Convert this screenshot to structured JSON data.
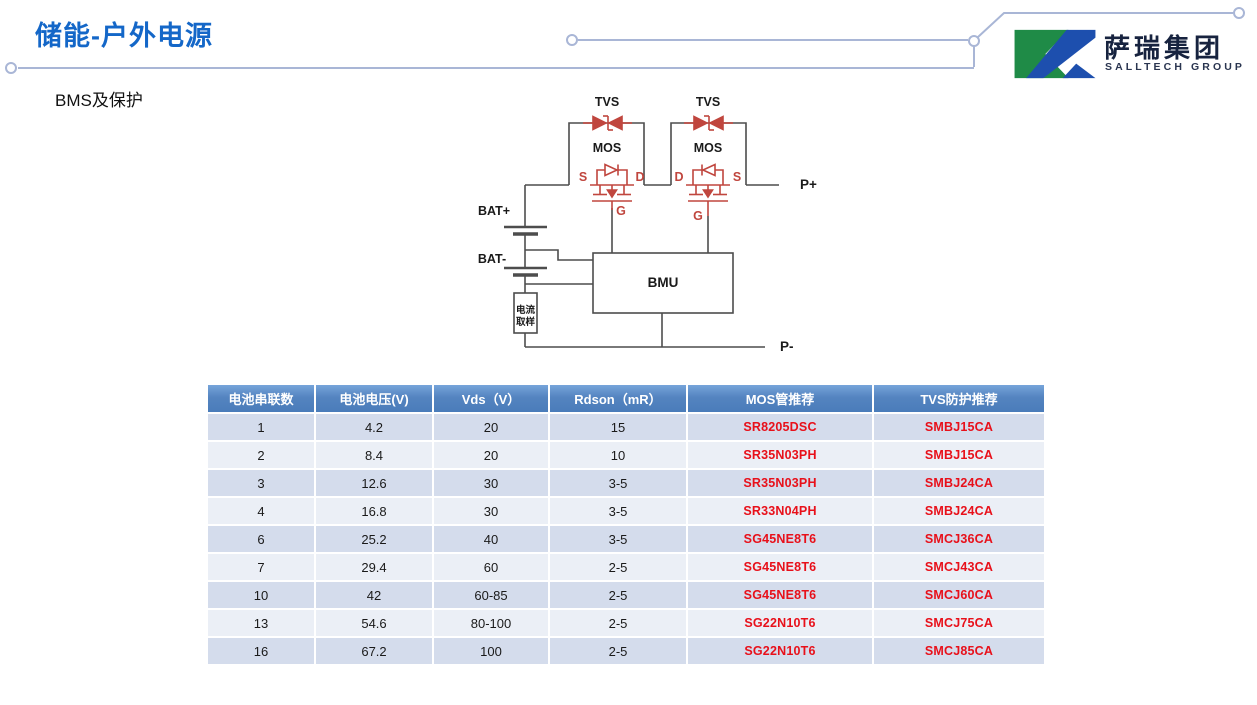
{
  "page": {
    "title": "储能-户外电源",
    "subtitle": "BMS及保护"
  },
  "logo": {
    "name_cn": "萨瑞集团",
    "name_en": "SALLTECH GROUP",
    "green": "#1f8b47",
    "blue": "#1d4fae"
  },
  "diagram": {
    "labels": {
      "tvs": "TVS",
      "mos": "MOS",
      "s": "S",
      "d": "D",
      "g": "G",
      "bat_plus": "BAT+",
      "bat_minus": "BAT-",
      "bmu": "BMU",
      "current_sampling_line1": "电流",
      "current_sampling_line2": "取样",
      "p_plus": "P+",
      "p_minus": "P-"
    },
    "colors": {
      "wire": "#4d4d4d",
      "component_red": "#c0463e"
    }
  },
  "table": {
    "headers": [
      "电池串联数",
      "电池电压(V)",
      "Vds（V）",
      "Rdson（mR）",
      "MOS管推荐",
      "TVS防护推荐"
    ],
    "col_keys": [
      "battery-series",
      "battery-voltage",
      "vds",
      "rdson",
      "mos-recommendation",
      "tvs-recommendation"
    ],
    "rows": [
      [
        "1",
        "4.2",
        "20",
        "15",
        "SR8205DSC",
        "SMBJ15CA"
      ],
      [
        "2",
        "8.4",
        "20",
        "10",
        "SR35N03PH",
        "SMBJ15CA"
      ],
      [
        "3",
        "12.6",
        "30",
        "3-5",
        "SR35N03PH",
        "SMBJ24CA"
      ],
      [
        "4",
        "16.8",
        "30",
        "3-5",
        "SR33N04PH",
        "SMBJ24CA"
      ],
      [
        "6",
        "25.2",
        "40",
        "3-5",
        "SG45NE8T6",
        "SMCJ36CA"
      ],
      [
        "7",
        "29.4",
        "60",
        "2-5",
        "SG45NE8T6",
        "SMCJ43CA"
      ],
      [
        "10",
        "42",
        "60-85",
        "2-5",
        "SG45NE8T6",
        "SMCJ60CA"
      ],
      [
        "13",
        "54.6",
        "80-100",
        "2-5",
        "SG22N10T6",
        "SMCJ75CA"
      ],
      [
        "16",
        "67.2",
        "100",
        "2-5",
        "SG22N10T6",
        "SMCJ85CA"
      ]
    ],
    "colors": {
      "header_blue": "#4a7cba",
      "row_dark": "#d4dcec",
      "row_light": "#ebeff6",
      "highlight_red": "#e8101a"
    }
  },
  "accent": {
    "title_blue": "#1467c8",
    "connector_gray_blue": "#a9b6d6"
  }
}
